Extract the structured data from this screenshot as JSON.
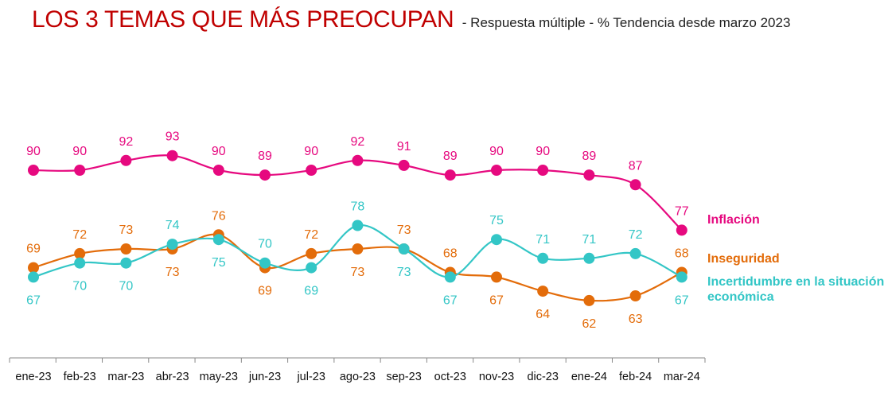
{
  "chart_data": {
    "type": "line",
    "title": "LOS 3 TEMAS QUE MÁS PREOCUPAN",
    "subtitle": "- Respuesta múltiple - % Tendencia desde marzo 2023",
    "categories": [
      "ene-23",
      "feb-23",
      "mar-23",
      "abr-23",
      "may-23",
      "jun-23",
      "jul-23",
      "ago-23",
      "sep-23",
      "oct-23",
      "nov-23",
      "dic-23",
      "ene-24",
      "feb-24",
      "mar-24"
    ],
    "series": [
      {
        "name": "Inflación",
        "color": "#e6097f",
        "label_pos": "above",
        "values": [
          90,
          90,
          92,
          93,
          90,
          89,
          90,
          92,
          91,
          89,
          90,
          90,
          89,
          87,
          77
        ]
      },
      {
        "name": "Inseguridad",
        "color": "#e36c0a",
        "label_pos": "mixed",
        "values": [
          69,
          72,
          73,
          73,
          76,
          69,
          72,
          73,
          73,
          68,
          67,
          64,
          62,
          63,
          68
        ]
      },
      {
        "name": "Incertidumbre en la situación económica",
        "legend_lines": [
          "Incertidumbre en la situación",
          "económica"
        ],
        "color": "#33c6c6",
        "label_pos": "mixed",
        "values": [
          67,
          70,
          70,
          74,
          75,
          70,
          69,
          78,
          73,
          67,
          75,
          71,
          71,
          72,
          67
        ]
      }
    ],
    "xlabel": "",
    "ylabel": "",
    "ylim": [
      55,
      100
    ],
    "grid": false,
    "legend_position": "right"
  }
}
